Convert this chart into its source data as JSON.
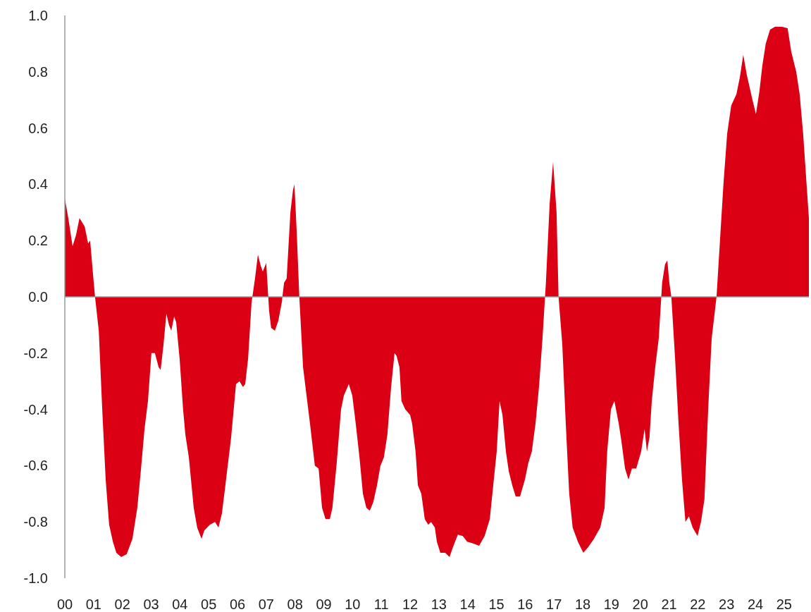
{
  "chart_data": {
    "type": "area",
    "color": "#dc0014",
    "xlim": [
      2000,
      2025.86
    ],
    "ylim": [
      -1,
      1
    ],
    "xticks": [
      {
        "value": 2000,
        "label": "00"
      },
      {
        "value": 2001,
        "label": "01"
      },
      {
        "value": 2002,
        "label": "02"
      },
      {
        "value": 2003,
        "label": "03"
      },
      {
        "value": 2004,
        "label": "04"
      },
      {
        "value": 2005,
        "label": "05"
      },
      {
        "value": 2006,
        "label": "06"
      },
      {
        "value": 2007,
        "label": "07"
      },
      {
        "value": 2008,
        "label": "08"
      },
      {
        "value": 2009,
        "label": "09"
      },
      {
        "value": 2010,
        "label": "10"
      },
      {
        "value": 2011,
        "label": "11"
      },
      {
        "value": 2012,
        "label": "12"
      },
      {
        "value": 2013,
        "label": "13"
      },
      {
        "value": 2014,
        "label": "14"
      },
      {
        "value": 2015,
        "label": "15"
      },
      {
        "value": 2016,
        "label": "16"
      },
      {
        "value": 2017,
        "label": "17"
      },
      {
        "value": 2018,
        "label": "18"
      },
      {
        "value": 2019,
        "label": "19"
      },
      {
        "value": 2020,
        "label": "20"
      },
      {
        "value": 2021,
        "label": "21"
      },
      {
        "value": 2022,
        "label": "22"
      },
      {
        "value": 2023,
        "label": "23"
      },
      {
        "value": 2024,
        "label": "24"
      },
      {
        "value": 2025,
        "label": "25"
      }
    ],
    "yticks": [
      {
        "value": 1,
        "label": "1.0"
      },
      0.8,
      0.6,
      0.4,
      0.2,
      {
        "value": 0,
        "label": "0.0"
      },
      -0.2,
      -0.4,
      -0.6,
      -0.8,
      {
        "value": -1,
        "label": "-1.0"
      }
    ],
    "x": [
      2000.0,
      2000.12,
      2000.27,
      2000.39,
      2000.51,
      2000.69,
      2000.81,
      2000.88,
      2000.98,
      2001.05,
      2001.18,
      2001.3,
      2001.42,
      2001.54,
      2001.67,
      2001.79,
      2001.96,
      2002.15,
      2002.35,
      2002.52,
      2002.64,
      2002.77,
      2002.89,
      2003.01,
      2003.13,
      2003.26,
      2003.33,
      2003.43,
      2003.53,
      2003.62,
      2003.7,
      2003.8,
      2003.87,
      2003.99,
      2004.11,
      2004.19,
      2004.31,
      2004.48,
      2004.6,
      2004.75,
      2004.85,
      2005.04,
      2005.22,
      2005.34,
      2005.46,
      2005.58,
      2005.78,
      2005.95,
      2006.07,
      2006.19,
      2006.27,
      2006.37,
      2006.49,
      2006.61,
      2006.71,
      2006.81,
      2006.88,
      2007.0,
      2007.1,
      2007.17,
      2007.3,
      2007.42,
      2007.54,
      2007.62,
      2007.71,
      2007.84,
      2007.93,
      2007.98,
      2008.06,
      2008.15,
      2008.28,
      2008.4,
      2008.52,
      2008.69,
      2008.82,
      2008.94,
      2009.06,
      2009.21,
      2009.3,
      2009.45,
      2009.6,
      2009.7,
      2009.87,
      2009.99,
      2010.11,
      2010.24,
      2010.36,
      2010.48,
      2010.6,
      2010.72,
      2010.85,
      2010.97,
      2011.09,
      2011.21,
      2011.34,
      2011.46,
      2011.53,
      2011.63,
      2011.7,
      2011.83,
      2012.0,
      2012.07,
      2012.19,
      2012.27,
      2012.39,
      2012.51,
      2012.63,
      2012.73,
      2012.86,
      2012.93,
      2013.05,
      2013.22,
      2013.37,
      2013.49,
      2013.66,
      2013.83,
      2013.98,
      2014.15,
      2014.4,
      2014.59,
      2014.77,
      2014.89,
      2015.01,
      2015.11,
      2015.21,
      2015.33,
      2015.43,
      2015.55,
      2015.67,
      2015.82,
      2015.99,
      2016.11,
      2016.23,
      2016.36,
      2016.48,
      2016.6,
      2016.72,
      2016.85,
      2016.97,
      2017.09,
      2017.16,
      2017.29,
      2017.41,
      2017.53,
      2017.65,
      2017.83,
      2018.02,
      2018.19,
      2018.39,
      2018.61,
      2018.76,
      2018.85,
      2018.98,
      2019.1,
      2019.25,
      2019.34,
      2019.47,
      2019.59,
      2019.71,
      2019.86,
      2020.03,
      2020.15,
      2020.23,
      2020.32,
      2020.4,
      2020.52,
      2020.64,
      2020.76,
      2020.86,
      2020.94,
      2021.01,
      2021.08,
      2021.21,
      2021.33,
      2021.45,
      2021.57,
      2021.69,
      2021.82,
      2021.99,
      2022.11,
      2022.23,
      2022.36,
      2022.48,
      2022.65,
      2022.77,
      2022.89,
      2023.02,
      2023.16,
      2023.34,
      2023.46,
      2023.58,
      2023.7,
      2023.9,
      2024.02,
      2024.14,
      2024.24,
      2024.36,
      2024.51,
      2024.68,
      2024.93,
      2025.12,
      2025.25,
      2025.42,
      2025.54,
      2025.66,
      2025.78,
      2025.86
    ],
    "values": [
      0.35,
      0.28,
      0.18,
      0.22,
      0.28,
      0.25,
      0.19,
      0.2,
      0.08,
      0,
      -0.12,
      -0.4,
      -0.65,
      -0.81,
      -0.87,
      -0.91,
      -0.925,
      -0.915,
      -0.86,
      -0.75,
      -0.62,
      -0.47,
      -0.37,
      -0.2,
      -0.2,
      -0.25,
      -0.26,
      -0.17,
      -0.06,
      -0.1,
      -0.12,
      -0.07,
      -0.09,
      -0.22,
      -0.4,
      -0.49,
      -0.57,
      -0.75,
      -0.82,
      -0.86,
      -0.83,
      -0.81,
      -0.8,
      -0.82,
      -0.77,
      -0.67,
      -0.5,
      -0.31,
      -0.3,
      -0.32,
      -0.31,
      -0.22,
      -0.02,
      0.065,
      0.15,
      0.11,
      0.09,
      0.12,
      -0.05,
      -0.11,
      -0.12,
      -0.085,
      -0.02,
      0.05,
      0.065,
      0.3,
      0.38,
      0.4,
      0.23,
      0,
      -0.25,
      -0.35,
      -0.45,
      -0.6,
      -0.61,
      -0.75,
      -0.79,
      -0.79,
      -0.75,
      -0.59,
      -0.4,
      -0.35,
      -0.31,
      -0.35,
      -0.45,
      -0.57,
      -0.7,
      -0.75,
      -0.76,
      -0.73,
      -0.67,
      -0.6,
      -0.57,
      -0.49,
      -0.32,
      -0.2,
      -0.21,
      -0.25,
      -0.37,
      -0.4,
      -0.42,
      -0.45,
      -0.55,
      -0.67,
      -0.7,
      -0.79,
      -0.81,
      -0.8,
      -0.82,
      -0.87,
      -0.91,
      -0.91,
      -0.925,
      -0.89,
      -0.845,
      -0.85,
      -0.87,
      -0.875,
      -0.885,
      -0.85,
      -0.79,
      -0.67,
      -0.55,
      -0.37,
      -0.42,
      -0.55,
      -0.62,
      -0.67,
      -0.71,
      -0.71,
      -0.65,
      -0.59,
      -0.55,
      -0.45,
      -0.32,
      -0.15,
      0.05,
      0.33,
      0.48,
      0.3,
      0,
      -0.17,
      -0.45,
      -0.7,
      -0.82,
      -0.87,
      -0.91,
      -0.89,
      -0.86,
      -0.82,
      -0.75,
      -0.55,
      -0.4,
      -0.37,
      -0.45,
      -0.51,
      -0.61,
      -0.65,
      -0.61,
      -0.61,
      -0.55,
      -0.47,
      -0.55,
      -0.5,
      -0.37,
      -0.25,
      -0.15,
      0.05,
      0.115,
      0.13,
      0.05,
      0,
      -0.22,
      -0.45,
      -0.65,
      -0.8,
      -0.78,
      -0.82,
      -0.85,
      -0.8,
      -0.72,
      -0.4,
      -0.15,
      0,
      0.2,
      0.4,
      0.58,
      0.68,
      0.72,
      0.78,
      0.86,
      0.79,
      0.7,
      0.65,
      0.73,
      0.82,
      0.9,
      0.95,
      0.96,
      0.96,
      0.955,
      0.87,
      0.8,
      0.72,
      0.58,
      0.4,
      0.28
    ]
  }
}
